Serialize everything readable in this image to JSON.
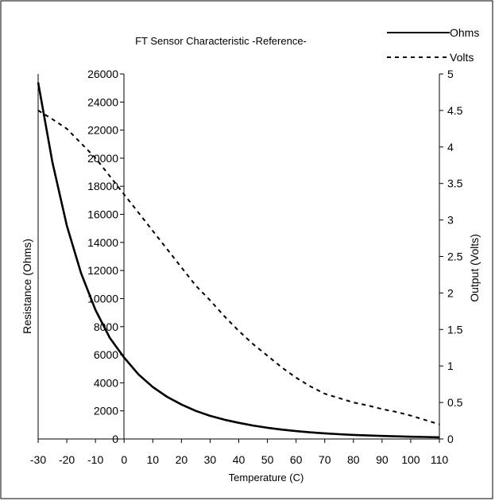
{
  "chart_data": {
    "type": "line",
    "title": "FT Sensor Characteristic -Reference-",
    "xlabel": "Temperature (C)",
    "ylabel_left": "Resistance (Ohms)",
    "ylabel_right": "Output (Volts)",
    "xlim": [
      -30,
      110
    ],
    "ylim_left": [
      0,
      26000
    ],
    "ylim_right": [
      0,
      5
    ],
    "x_ticks": [
      -30,
      -20,
      -10,
      0,
      10,
      20,
      30,
      40,
      50,
      60,
      70,
      80,
      90,
      100,
      110
    ],
    "y_left_ticks": [
      0,
      2000,
      4000,
      6000,
      8000,
      10000,
      12000,
      14000,
      16000,
      18000,
      20000,
      22000,
      24000,
      26000
    ],
    "y_right_ticks": [
      "0",
      "0.5",
      "1",
      "1.5",
      "2",
      "2.5",
      "3",
      "3.5",
      "4",
      "4.5",
      "5"
    ],
    "grid": true,
    "legend_position": "top-right",
    "series": [
      {
        "name": "Ohms",
        "axis": "left",
        "style": "solid",
        "x": [
          -30,
          -25,
          -20,
          -15,
          -10,
          -5,
          0,
          5,
          10,
          15,
          20,
          25,
          30,
          35,
          40,
          45,
          50,
          55,
          60,
          65,
          70,
          75,
          80,
          85,
          90,
          95,
          100,
          105,
          110
        ],
        "values": [
          25400,
          19700,
          15200,
          11800,
          9200,
          7200,
          5800,
          4600,
          3700,
          3000,
          2450,
          2000,
          1650,
          1370,
          1150,
          960,
          800,
          670,
          560,
          470,
          400,
          340,
          290,
          250,
          215,
          185,
          160,
          140,
          120
        ]
      },
      {
        "name": "Volts",
        "axis": "right",
        "style": "dashed",
        "x": [
          -30,
          -25,
          -20,
          -15,
          -10,
          -5,
          0,
          5,
          10,
          15,
          20,
          25,
          30,
          35,
          40,
          45,
          50,
          55,
          60,
          65,
          70,
          75,
          80,
          85,
          90,
          95,
          100,
          105,
          110
        ],
        "values": [
          4.5,
          4.38,
          4.25,
          4.05,
          3.85,
          3.6,
          3.35,
          3.1,
          2.85,
          2.6,
          2.35,
          2.1,
          1.9,
          1.68,
          1.48,
          1.3,
          1.14,
          0.98,
          0.84,
          0.72,
          0.62,
          0.56,
          0.5,
          0.46,
          0.41,
          0.37,
          0.32,
          0.26,
          0.2
        ]
      }
    ]
  }
}
